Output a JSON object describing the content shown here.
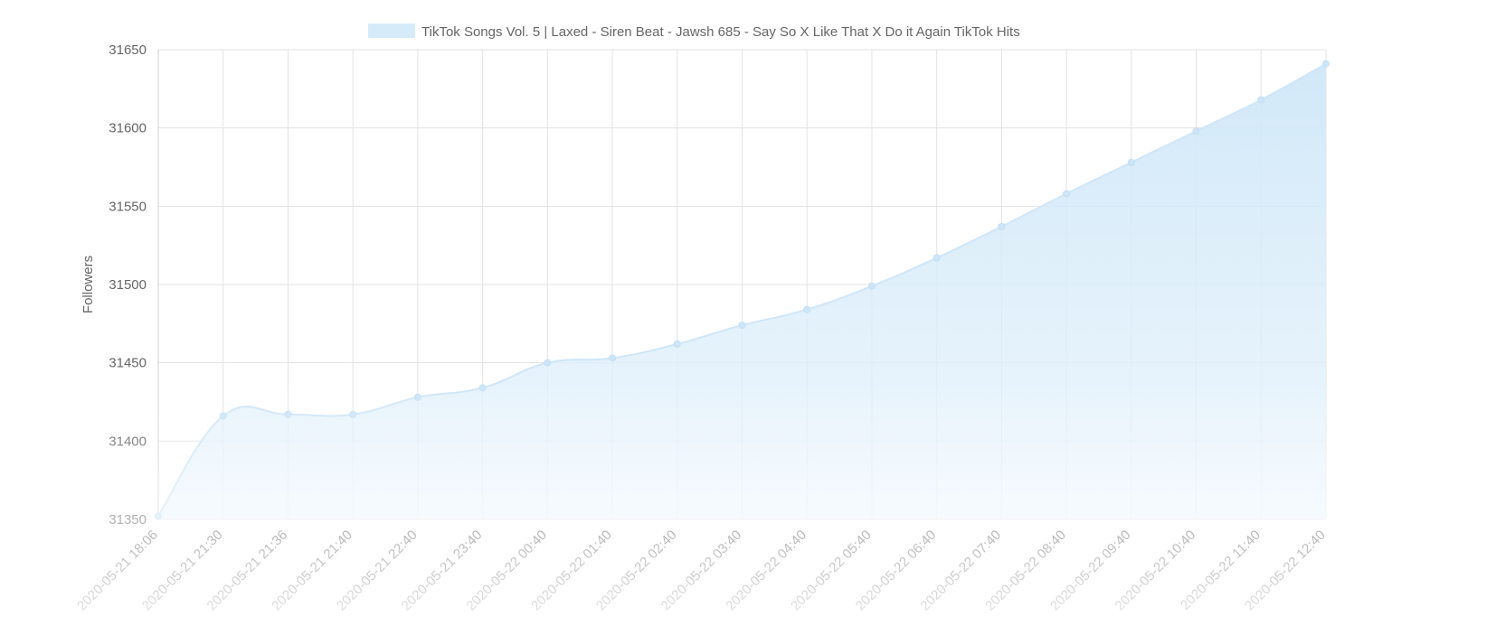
{
  "chart_data": {
    "type": "area",
    "title": "",
    "xlabel": "",
    "ylabel": "Followers",
    "ylim": [
      31350,
      31650
    ],
    "y_ticks": [
      31650,
      31600,
      31550,
      31500,
      31450,
      31400,
      31350
    ],
    "grid": true,
    "legend_position": "top",
    "x": [
      "2020-05-21 18:06",
      "2020-05-21 21:30",
      "2020-05-21 21:36",
      "2020-05-21 21:40",
      "2020-05-21 22:40",
      "2020-05-21 23:40",
      "2020-05-22 00:40",
      "2020-05-22 01:40",
      "2020-05-22 02:40",
      "2020-05-22 03:40",
      "2020-05-22 04:40",
      "2020-05-22 05:40",
      "2020-05-22 06:40",
      "2020-05-22 07:40",
      "2020-05-22 08:40",
      "2020-05-22 09:40",
      "2020-05-22 10:40",
      "2020-05-22 11:40",
      "2020-05-22 12:40"
    ],
    "series": [
      {
        "name": "TikTok Songs Vol. 5 | Laxed - Siren Beat - Jawsh 685 - Say So X Like That X Do it Again TikTok Hits",
        "values": [
          31352,
          31416,
          31417,
          31417,
          31428,
          31434,
          31450,
          31453,
          31462,
          31474,
          31484,
          31499,
          31517,
          31537,
          31558,
          31578,
          31598,
          31618,
          31641
        ],
        "color": "#d6ebfa"
      }
    ]
  }
}
